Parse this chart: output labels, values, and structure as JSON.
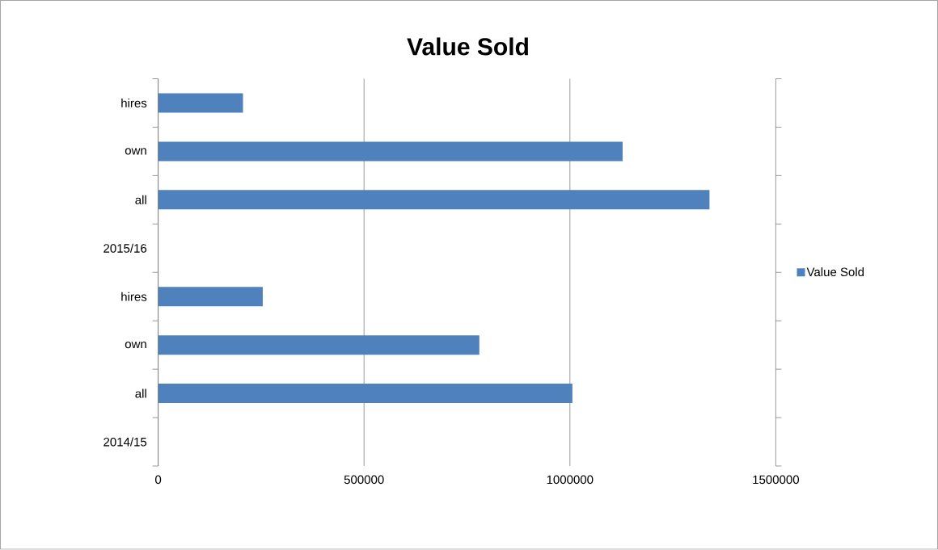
{
  "chart_data": {
    "type": "bar",
    "orientation": "horizontal",
    "title": "Value Sold",
    "categories": [
      "hires",
      "own",
      "all",
      "2015/16",
      "hires",
      "own",
      "all",
      "2014/15"
    ],
    "series": [
      {
        "name": "Value Sold",
        "color": "#4f81bd",
        "values": [
          206000,
          1128000,
          1339000,
          null,
          254000,
          780000,
          1006000,
          null
        ]
      }
    ],
    "xlim": [
      0,
      1500000
    ],
    "xticks": [
      0,
      500000,
      1000000,
      1500000
    ],
    "grid": "x",
    "legend": "right"
  }
}
